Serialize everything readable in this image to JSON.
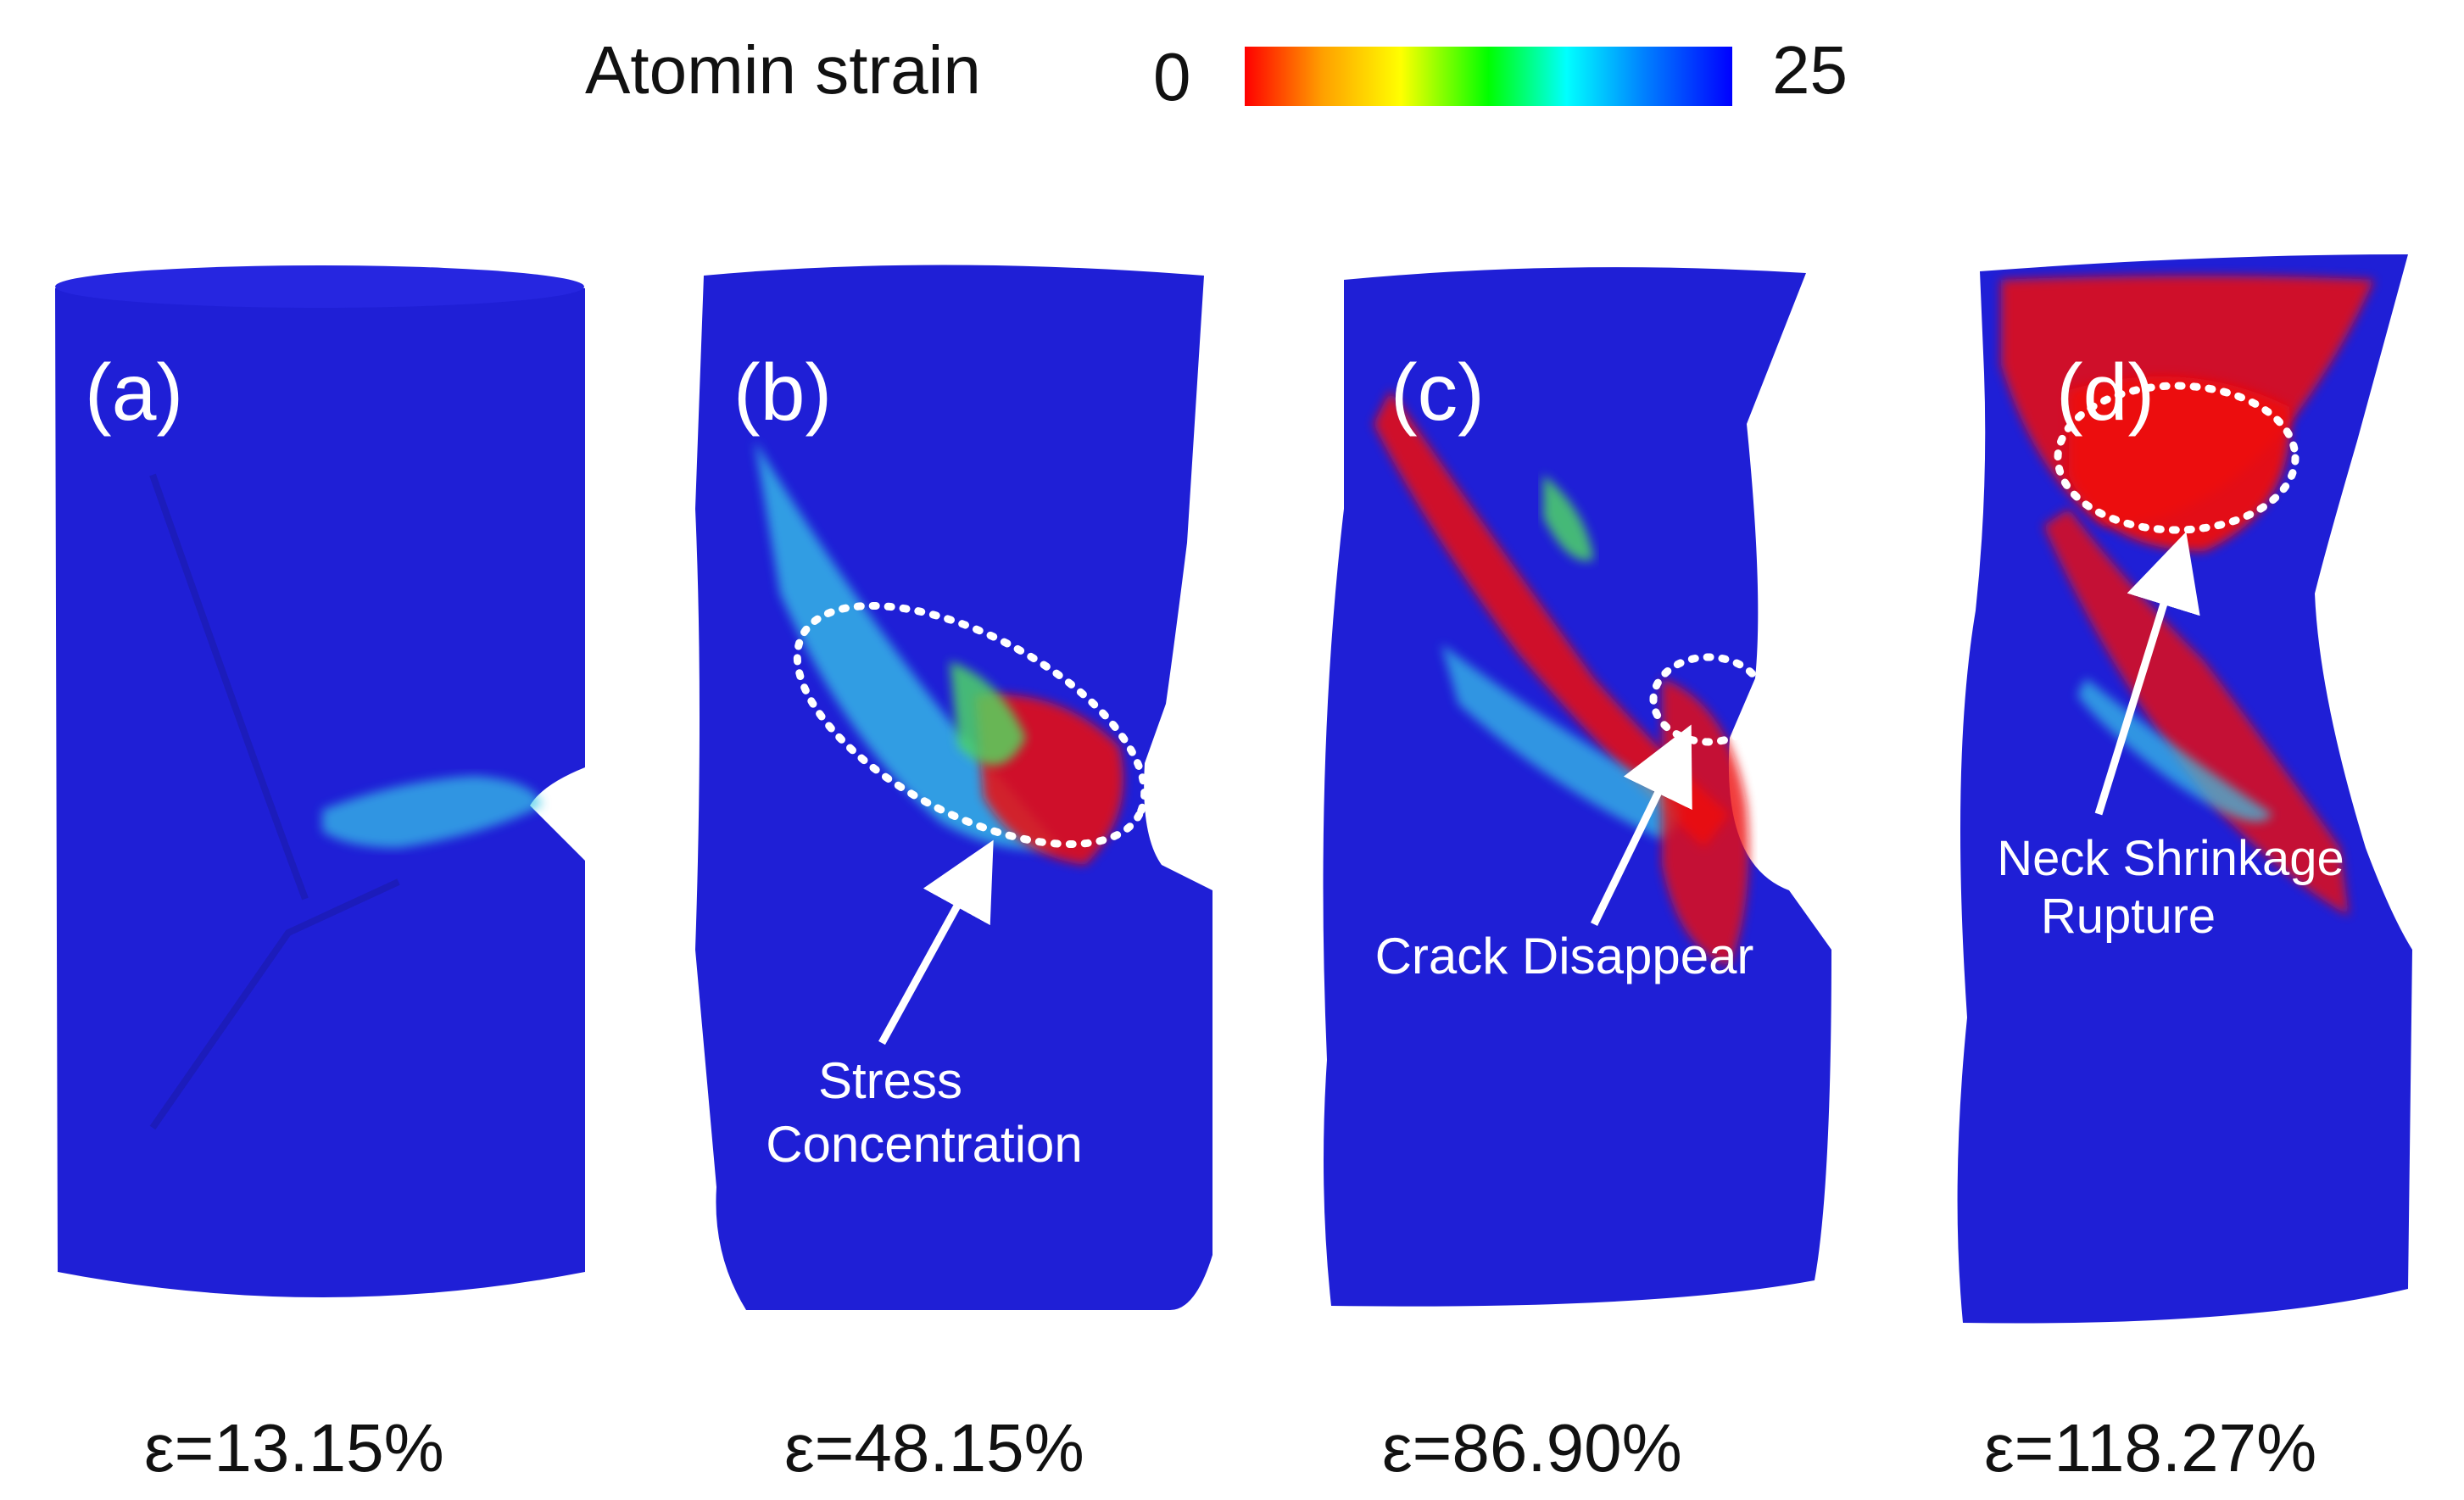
{
  "colorbar": {
    "label": "Atomin strain",
    "min_label": "0",
    "max_label": "25",
    "colors": [
      "#ff0000",
      "#ffa000",
      "#ffff00",
      "#00ff00",
      "#00ffff",
      "#0080ff",
      "#0000ff"
    ]
  },
  "panels": [
    {
      "letter": "(a)",
      "strain_label": "ε=13.15%",
      "annotation_lines": []
    },
    {
      "letter": "(b)",
      "strain_label": "ε=48.15%",
      "annotation_lines": [
        "Stress",
        "Concentration"
      ]
    },
    {
      "letter": "(c)",
      "strain_label": "ε=86.90%",
      "annotation_lines": [
        "Crack Disappear"
      ]
    },
    {
      "letter": "(d)",
      "strain_label": "ε=118.27%",
      "annotation_lines": [
        "Neck Shrinkage",
        "Rupture"
      ]
    }
  ],
  "colors": {
    "specimen_blue": "#1f1fd6",
    "band_cyan": "#39c8e8",
    "band_green": "#50e060",
    "band_red": "#ee1010",
    "annotation_white": "#ffffff"
  }
}
